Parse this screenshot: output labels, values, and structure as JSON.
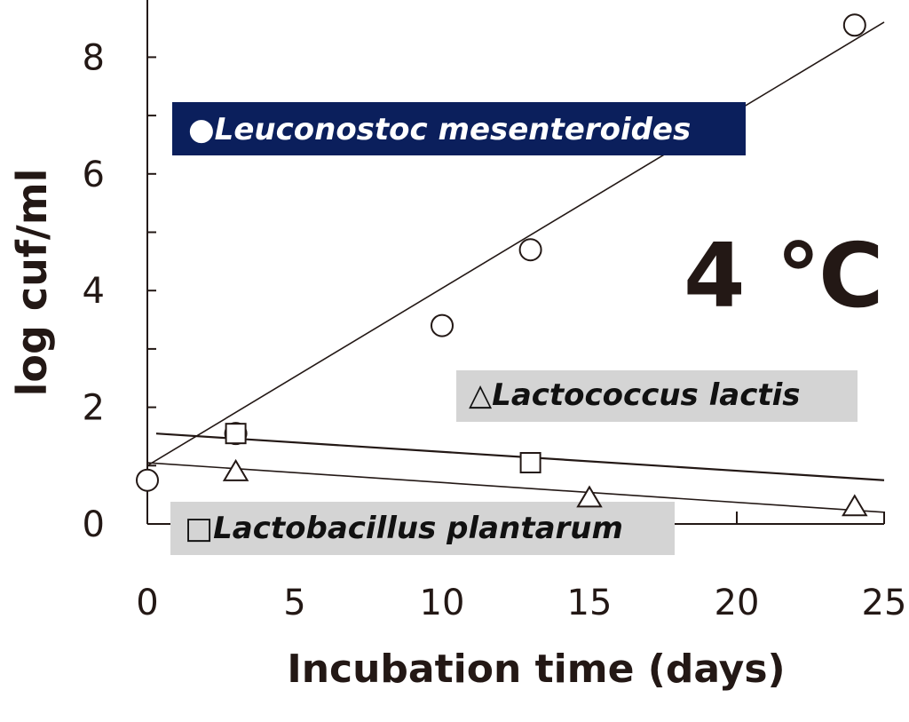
{
  "chart_data": {
    "type": "scatter",
    "title": "",
    "xlabel": "Incubation time (days)",
    "ylabel": "log cuf/ml",
    "xlim": [
      0,
      25
    ],
    "ylim": [
      0,
      9
    ],
    "x_ticks": [
      "0",
      "5",
      "10",
      "15",
      "20",
      "25"
    ],
    "y_ticks": [
      "0",
      "2",
      "4",
      "6",
      "8"
    ],
    "annotation": "4 ℃",
    "series": [
      {
        "name": "●Leuconostoc mesenteroides",
        "marker": "circle",
        "legend_color": "#0b1f5c",
        "legend_text_color": "#ffffff",
        "x": [
          0,
          3,
          10,
          13,
          24
        ],
        "y": [
          0.75,
          1.55,
          3.4,
          4.7,
          8.55
        ],
        "fit": [
          [
            0,
            1.0
          ],
          [
            25,
            8.6
          ]
        ]
      },
      {
        "name": "△Lactococcus lactis",
        "marker": "triangle",
        "legend_color": "#d4d4d4",
        "legend_text_color": "#111111",
        "x": [
          3,
          15,
          24
        ],
        "y": [
          0.9,
          0.45,
          0.3
        ],
        "fit": [
          [
            0,
            1.05
          ],
          [
            25,
            0.2
          ]
        ]
      },
      {
        "name": "□Lactobacillus plantarum",
        "marker": "square",
        "legend_color": "#d4d4d4",
        "legend_text_color": "#111111",
        "x": [
          3,
          13
        ],
        "y": [
          1.55,
          1.05
        ],
        "fit": [
          [
            0.3,
            1.55
          ],
          [
            25,
            0.75
          ]
        ]
      }
    ]
  }
}
